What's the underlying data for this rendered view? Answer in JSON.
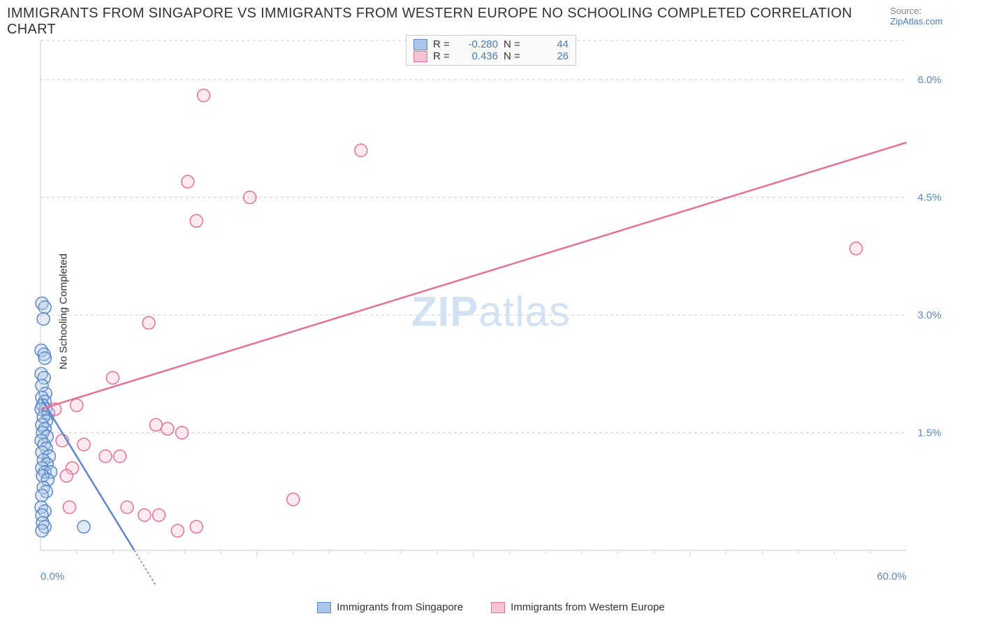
{
  "title": "IMMIGRANTS FROM SINGAPORE VS IMMIGRANTS FROM WESTERN EUROPE NO SCHOOLING COMPLETED CORRELATION CHART",
  "source_label": "Source:",
  "source_value": "ZipAtlas.com",
  "ylabel": "No Schooling Completed",
  "watermark_bold": "ZIP",
  "watermark_rest": "atlas",
  "chart": {
    "type": "scatter",
    "background_color": "#ffffff",
    "grid_color": "#cccccc",
    "grid_dash": "4 4",
    "xlim": [
      0,
      60
    ],
    "ylim": [
      0,
      6.5
    ],
    "x_axis_label_left": "0.0%",
    "x_axis_label_right": "60.0%",
    "y_ticks": [
      1.5,
      3.0,
      4.5,
      6.0
    ],
    "y_tick_labels": [
      "1.5%",
      "3.0%",
      "4.5%",
      "6.0%"
    ],
    "x_ticks_minor": [
      2.5,
      5,
      7.5,
      10,
      12.5,
      15,
      17.5,
      20,
      22.5,
      25,
      27.5,
      30,
      32.5,
      35,
      37.5,
      40,
      42.5,
      45,
      47.5,
      50,
      52.5,
      55,
      57.5
    ],
    "x_ticks_major": [
      15,
      30,
      45
    ],
    "marker_radius": 9,
    "marker_stroke_width": 1.5,
    "marker_fill_opacity": 0.35,
    "trendline_width": 2.5,
    "trendline_dash_ext": "3 3",
    "axis_label_fontsize": 15,
    "axis_label_color": "#5b87c7",
    "title_fontsize": 20,
    "title_color": "#333333",
    "series": [
      {
        "name": "Immigrants from Singapore",
        "color_stroke": "#5b87c7",
        "color_fill": "#a9c7e8",
        "R": "-0.280",
        "N": "44",
        "trendline": {
          "x1": 0,
          "y1": 1.95,
          "x2": 6.5,
          "y2": 0.0
        },
        "points": [
          [
            0.1,
            3.15
          ],
          [
            0.3,
            3.1
          ],
          [
            0.2,
            2.95
          ],
          [
            0.05,
            2.55
          ],
          [
            0.25,
            2.5
          ],
          [
            0.3,
            2.45
          ],
          [
            0.05,
            2.25
          ],
          [
            0.25,
            2.2
          ],
          [
            0.1,
            2.1
          ],
          [
            0.35,
            2.0
          ],
          [
            0.1,
            1.95
          ],
          [
            0.3,
            1.9
          ],
          [
            0.15,
            1.85
          ],
          [
            0.35,
            1.8
          ],
          [
            0.05,
            1.8
          ],
          [
            0.55,
            1.75
          ],
          [
            0.2,
            1.7
          ],
          [
            0.4,
            1.65
          ],
          [
            0.1,
            1.6
          ],
          [
            0.3,
            1.55
          ],
          [
            0.15,
            1.5
          ],
          [
            0.45,
            1.45
          ],
          [
            0.05,
            1.4
          ],
          [
            0.25,
            1.35
          ],
          [
            0.4,
            1.3
          ],
          [
            0.1,
            1.25
          ],
          [
            0.6,
            1.2
          ],
          [
            0.2,
            1.15
          ],
          [
            0.45,
            1.1
          ],
          [
            0.1,
            1.05
          ],
          [
            0.3,
            1.0
          ],
          [
            0.7,
            1.0
          ],
          [
            0.15,
            0.95
          ],
          [
            0.5,
            0.9
          ],
          [
            0.2,
            0.8
          ],
          [
            0.4,
            0.75
          ],
          [
            0.1,
            0.7
          ],
          [
            0.05,
            0.55
          ],
          [
            0.3,
            0.5
          ],
          [
            0.1,
            0.45
          ],
          [
            0.15,
            0.35
          ],
          [
            0.3,
            0.3
          ],
          [
            0.1,
            0.25
          ],
          [
            3.0,
            0.3
          ]
        ]
      },
      {
        "name": "Immigrants from Western Europe",
        "color_stroke": "#e77096",
        "color_fill": "#f6c3d3",
        "R": "0.436",
        "N": "26",
        "trendline": {
          "x1": 0,
          "y1": 1.8,
          "x2": 60,
          "y2": 5.2
        },
        "points": [
          [
            11.3,
            5.8
          ],
          [
            22.2,
            5.1
          ],
          [
            10.2,
            4.7
          ],
          [
            14.5,
            4.5
          ],
          [
            10.8,
            4.2
          ],
          [
            56.5,
            3.85
          ],
          [
            7.5,
            2.9
          ],
          [
            5.0,
            2.2
          ],
          [
            2.5,
            1.85
          ],
          [
            1.0,
            1.8
          ],
          [
            8.0,
            1.6
          ],
          [
            8.8,
            1.55
          ],
          [
            9.8,
            1.5
          ],
          [
            1.5,
            1.4
          ],
          [
            3.0,
            1.35
          ],
          [
            5.5,
            1.2
          ],
          [
            2.2,
            1.05
          ],
          [
            4.5,
            1.2
          ],
          [
            17.5,
            0.65
          ],
          [
            1.8,
            0.95
          ],
          [
            6.0,
            0.55
          ],
          [
            7.2,
            0.45
          ],
          [
            8.2,
            0.45
          ],
          [
            10.8,
            0.3
          ],
          [
            9.5,
            0.25
          ],
          [
            2.0,
            0.55
          ]
        ]
      }
    ]
  },
  "legend_top": {
    "rows": [
      {
        "swatch_fill": "#a9c7e8",
        "swatch_stroke": "#5b87c7",
        "r_label": "R =",
        "r_value": "-0.280",
        "n_label": "N =",
        "n_value": "44"
      },
      {
        "swatch_fill": "#f6c3d3",
        "swatch_stroke": "#e77096",
        "r_label": "R =",
        "r_value": "0.436",
        "n_label": "N =",
        "n_value": "26"
      }
    ]
  },
  "legend_bottom": {
    "items": [
      {
        "swatch_fill": "#a9c7e8",
        "swatch_stroke": "#5b87c7",
        "label": "Immigrants from Singapore"
      },
      {
        "swatch_fill": "#f6c3d3",
        "swatch_stroke": "#e77096",
        "label": "Immigrants from Western Europe"
      }
    ]
  }
}
